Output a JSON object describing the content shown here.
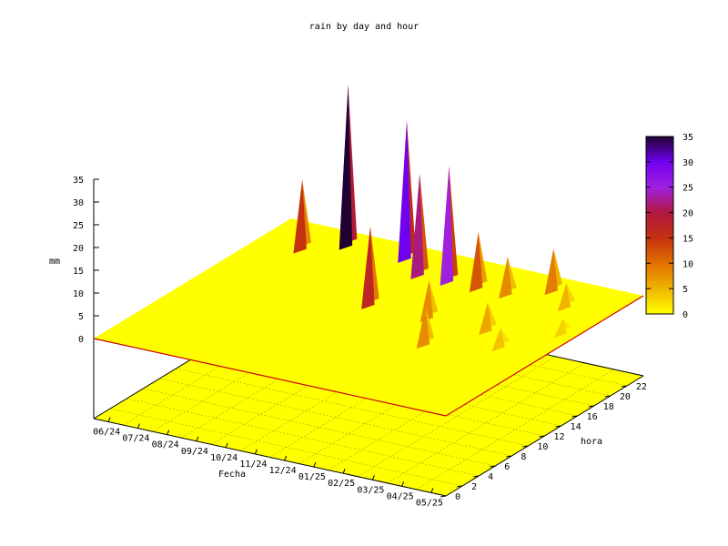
{
  "chart_data": {
    "type": "surface3d",
    "title": "rain by day and hour",
    "xlabel": "Fecha",
    "ylabel": "hora",
    "zlabel": "mm",
    "x_ticks": [
      "06/24",
      "07/24",
      "08/24",
      "09/24",
      "10/24",
      "11/24",
      "12/24",
      "01/25",
      "02/25",
      "03/25",
      "04/25",
      "05/25"
    ],
    "y_ticks": [
      "0",
      "2",
      "4",
      "6",
      "8",
      "10",
      "12",
      "14",
      "16",
      "18",
      "20",
      "22"
    ],
    "z_ticks": [
      "0",
      "5",
      "10",
      "15",
      "20",
      "25",
      "30",
      "35"
    ],
    "zlim": [
      0,
      35
    ],
    "colorbar_ticks": [
      "0",
      "5",
      "10",
      "15",
      "20",
      "25",
      "30",
      "35"
    ],
    "colorbar": [
      "#ffff00",
      "#f0b400",
      "#e07000",
      "#c53010",
      "#b01840",
      "#a020e0",
      "#7000f0",
      "#200030"
    ],
    "grid": true,
    "peaks": [
      {
        "date": "08/24",
        "hora": 22,
        "mm": 35
      },
      {
        "date": "07/24",
        "hora": 20,
        "mm": 15
      },
      {
        "date": "10/24",
        "hora": 22,
        "mm": 30
      },
      {
        "date": "11/24",
        "hora": 20,
        "mm": 22
      },
      {
        "date": "11/24",
        "hora": 14,
        "mm": 17
      },
      {
        "date": "12/24",
        "hora": 20,
        "mm": 25
      },
      {
        "date": "01/25",
        "hora": 20,
        "mm": 12
      },
      {
        "date": "01/25",
        "hora": 14,
        "mm": 8
      },
      {
        "date": "02/25",
        "hora": 20,
        "mm": 8
      },
      {
        "date": "03/25",
        "hora": 22,
        "mm": 9
      },
      {
        "date": "02/25",
        "hora": 10,
        "mm": 8
      },
      {
        "date": "03/25",
        "hora": 14,
        "mm": 6
      },
      {
        "date": "04/25",
        "hora": 20,
        "mm": 5
      },
      {
        "date": "04/25",
        "hora": 12,
        "mm": 4
      },
      {
        "date": "05/25",
        "hora": 16,
        "mm": 3
      }
    ]
  }
}
